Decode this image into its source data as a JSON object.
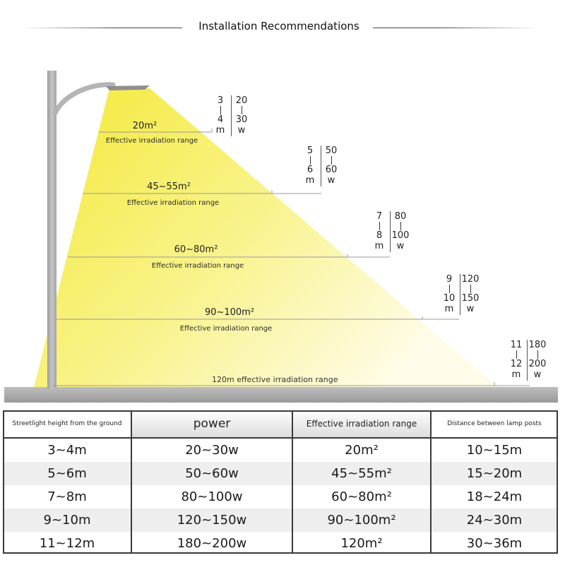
{
  "header": {
    "title": "Installation Recommendations"
  },
  "diagram": {
    "tiers": [
      {
        "height_top": "3",
        "height_bot": "4",
        "power_top": "20",
        "power_bot": "30",
        "m": "m",
        "w": "w",
        "area": "20m²",
        "effective": "Effective irradiation range"
      },
      {
        "height_top": "5",
        "height_bot": "6",
        "power_top": "50",
        "power_bot": "60",
        "m": "m",
        "w": "w",
        "area": "45~55m²",
        "effective": "Effective irradiation range"
      },
      {
        "height_top": "7",
        "height_bot": "8",
        "power_top": "80",
        "power_bot": "100",
        "m": "m",
        "w": "w",
        "area": "60~80m²",
        "effective": "Effective irradiation range"
      },
      {
        "height_top": "9",
        "height_bot": "10",
        "power_top": "120",
        "power_bot": "150",
        "m": "m",
        "w": "w",
        "area": "90~100m²",
        "effective": "Effective irradiation range"
      },
      {
        "height_top": "11",
        "height_bot": "12",
        "power_top": "180",
        "power_bot": "200",
        "m": "m",
        "w": "w",
        "area": "",
        "effective": ""
      }
    ],
    "ground_label": "120m effective irradiation range"
  },
  "table": {
    "headers": [
      "Streetlight height from the ground",
      "power",
      "Effective irradiation range",
      "Distance between lamp posts"
    ],
    "rows": [
      [
        "3~4m",
        "20~30w",
        "20m²",
        "10~15m"
      ],
      [
        "5~6m",
        "50~60w",
        "45~55m²",
        "15~20m"
      ],
      [
        "7~8m",
        "80~100w",
        "60~80m²",
        "18~24m"
      ],
      [
        "9~10m",
        "120~150w",
        "90~100m²",
        "24~30m"
      ],
      [
        "11~12m",
        "180~200w",
        "120m²",
        "30~36m"
      ]
    ]
  },
  "colors": {
    "light_beam": "#f6ee5a",
    "pole": "#b4b4b4",
    "ground": "#a9a9a9",
    "grid": "#3a3a3a"
  }
}
